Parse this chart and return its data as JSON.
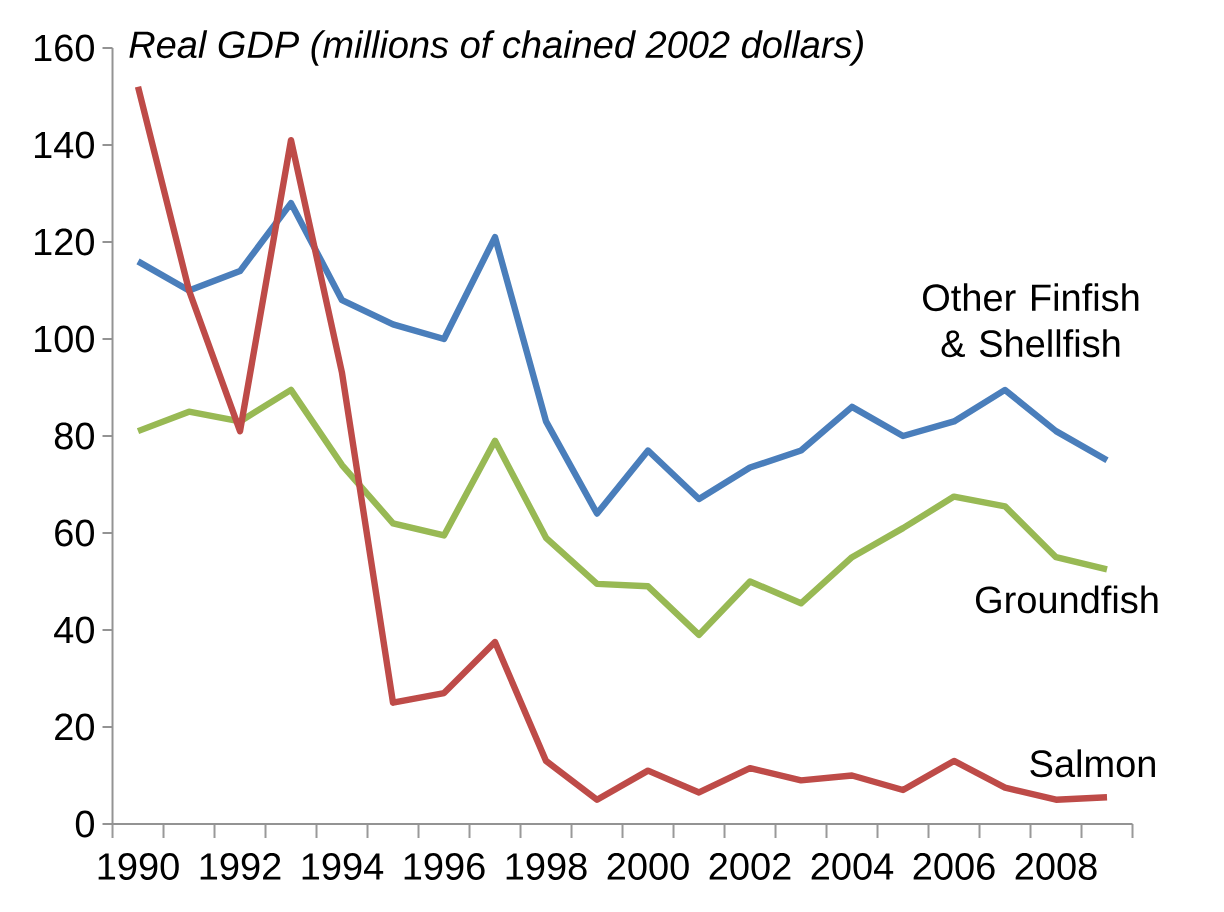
{
  "chart_data": {
    "type": "line",
    "title": "Real GDP  (millions of chained 2002 dollars)",
    "categories": [
      "1990",
      null,
      "1992",
      null,
      "1994",
      null,
      "1996",
      null,
      "1998",
      null,
      "2000",
      null,
      "2002",
      null,
      "2004",
      null,
      "2006",
      null,
      "2008",
      null
    ],
    "series": [
      {
        "name": "Other Finfish & Shellfish",
        "color": "#4a7ebb",
        "values": [
          116,
          110,
          114,
          128,
          108,
          103,
          100,
          121,
          83,
          64,
          77,
          67,
          73.5,
          77,
          86,
          80,
          83,
          89.5,
          81,
          75
        ]
      },
      {
        "name": "Groundfish",
        "color": "#98b954",
        "values": [
          81,
          85,
          83,
          89.5,
          74,
          62,
          59.5,
          79,
          59,
          49.5,
          49,
          39,
          50,
          45.5,
          55,
          61,
          67.5,
          65.5,
          55,
          52.5
        ]
      },
      {
        "name": "Salmon",
        "color": "#be4b48",
        "values": [
          152,
          110,
          81,
          141,
          93,
          25,
          27,
          37.5,
          13,
          5,
          11,
          6.5,
          11.5,
          9,
          10,
          7,
          13,
          7.5,
          5,
          5.5
        ]
      }
    ],
    "ylim": [
      0,
      160
    ],
    "yticks": [
      0,
      20,
      40,
      60,
      80,
      100,
      120,
      140,
      160
    ],
    "grid": false,
    "legend": false
  }
}
